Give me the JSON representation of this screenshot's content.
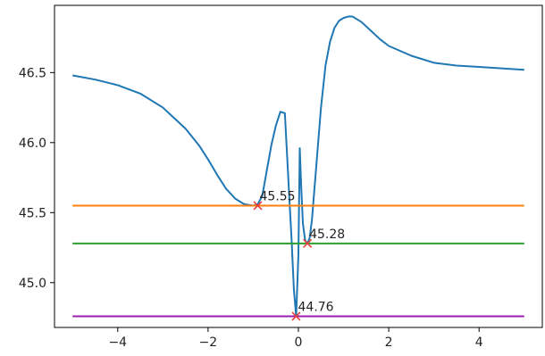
{
  "chart_data": {
    "type": "line",
    "title": "",
    "xlabel": "",
    "ylabel": "",
    "xlim": [
      -5.4,
      5.4
    ],
    "ylim": [
      44.68,
      46.98
    ],
    "x_ticks": [
      {
        "value": -4,
        "label": "−4"
      },
      {
        "value": -2,
        "label": "−2"
      },
      {
        "value": 0,
        "label": "0"
      },
      {
        "value": 2,
        "label": "2"
      },
      {
        "value": 4,
        "label": "4"
      }
    ],
    "y_ticks": [
      {
        "value": 45.0,
        "label": "45.0"
      },
      {
        "value": 45.5,
        "label": "45.5"
      },
      {
        "value": 46.0,
        "label": "46.0"
      },
      {
        "value": 46.5,
        "label": "46.5"
      }
    ],
    "grid": false,
    "series": [
      {
        "color": "#1f77b4",
        "x": [
          -5.0,
          -4.5,
          -4.0,
          -3.5,
          -3.0,
          -2.5,
          -2.2,
          -2.0,
          -1.8,
          -1.6,
          -1.4,
          -1.2,
          -1.0,
          -0.9,
          -0.8,
          -0.7,
          -0.6,
          -0.5,
          -0.4,
          -0.3,
          -0.2,
          -0.15,
          -0.1,
          -0.05,
          0.0,
          0.03,
          0.06,
          0.1,
          0.15,
          0.2,
          0.25,
          0.3,
          0.4,
          0.5,
          0.6,
          0.7,
          0.8,
          0.9,
          1.0,
          1.1,
          1.2,
          1.4,
          1.6,
          1.8,
          2.0,
          2.5,
          3.0,
          3.5,
          4.0,
          4.5,
          5.0
        ],
        "values": [
          46.48,
          46.45,
          46.41,
          46.35,
          46.25,
          46.1,
          45.98,
          45.88,
          45.77,
          45.67,
          45.6,
          45.56,
          45.55,
          45.56,
          45.62,
          45.8,
          45.98,
          46.12,
          46.22,
          46.21,
          45.6,
          45.3,
          44.95,
          44.76,
          45.2,
          45.96,
          45.7,
          45.42,
          45.3,
          45.28,
          45.32,
          45.45,
          45.85,
          46.25,
          46.55,
          46.72,
          46.82,
          46.87,
          46.89,
          46.9,
          46.9,
          46.86,
          46.8,
          46.74,
          46.69,
          46.62,
          46.57,
          46.55,
          46.54,
          46.53,
          46.52
        ]
      },
      {
        "color": "#ff7f0e",
        "x": [
          -5.0,
          5.0
        ],
        "values": [
          45.55,
          45.55
        ]
      },
      {
        "color": "#2ca02c",
        "x": [
          -5.0,
          5.0
        ],
        "values": [
          45.28,
          45.28
        ]
      },
      {
        "color": "#9a1fb0",
        "x": [
          -5.0,
          5.0
        ],
        "values": [
          44.76,
          44.76
        ]
      }
    ],
    "markers": [
      {
        "x": -0.9,
        "y": 45.55,
        "label": "45.55",
        "color": "#e8403a"
      },
      {
        "x": 0.2,
        "y": 45.28,
        "label": "45.28",
        "color": "#e8403a"
      },
      {
        "x": -0.05,
        "y": 44.76,
        "label": "44.76",
        "color": "#e8403a"
      }
    ]
  }
}
